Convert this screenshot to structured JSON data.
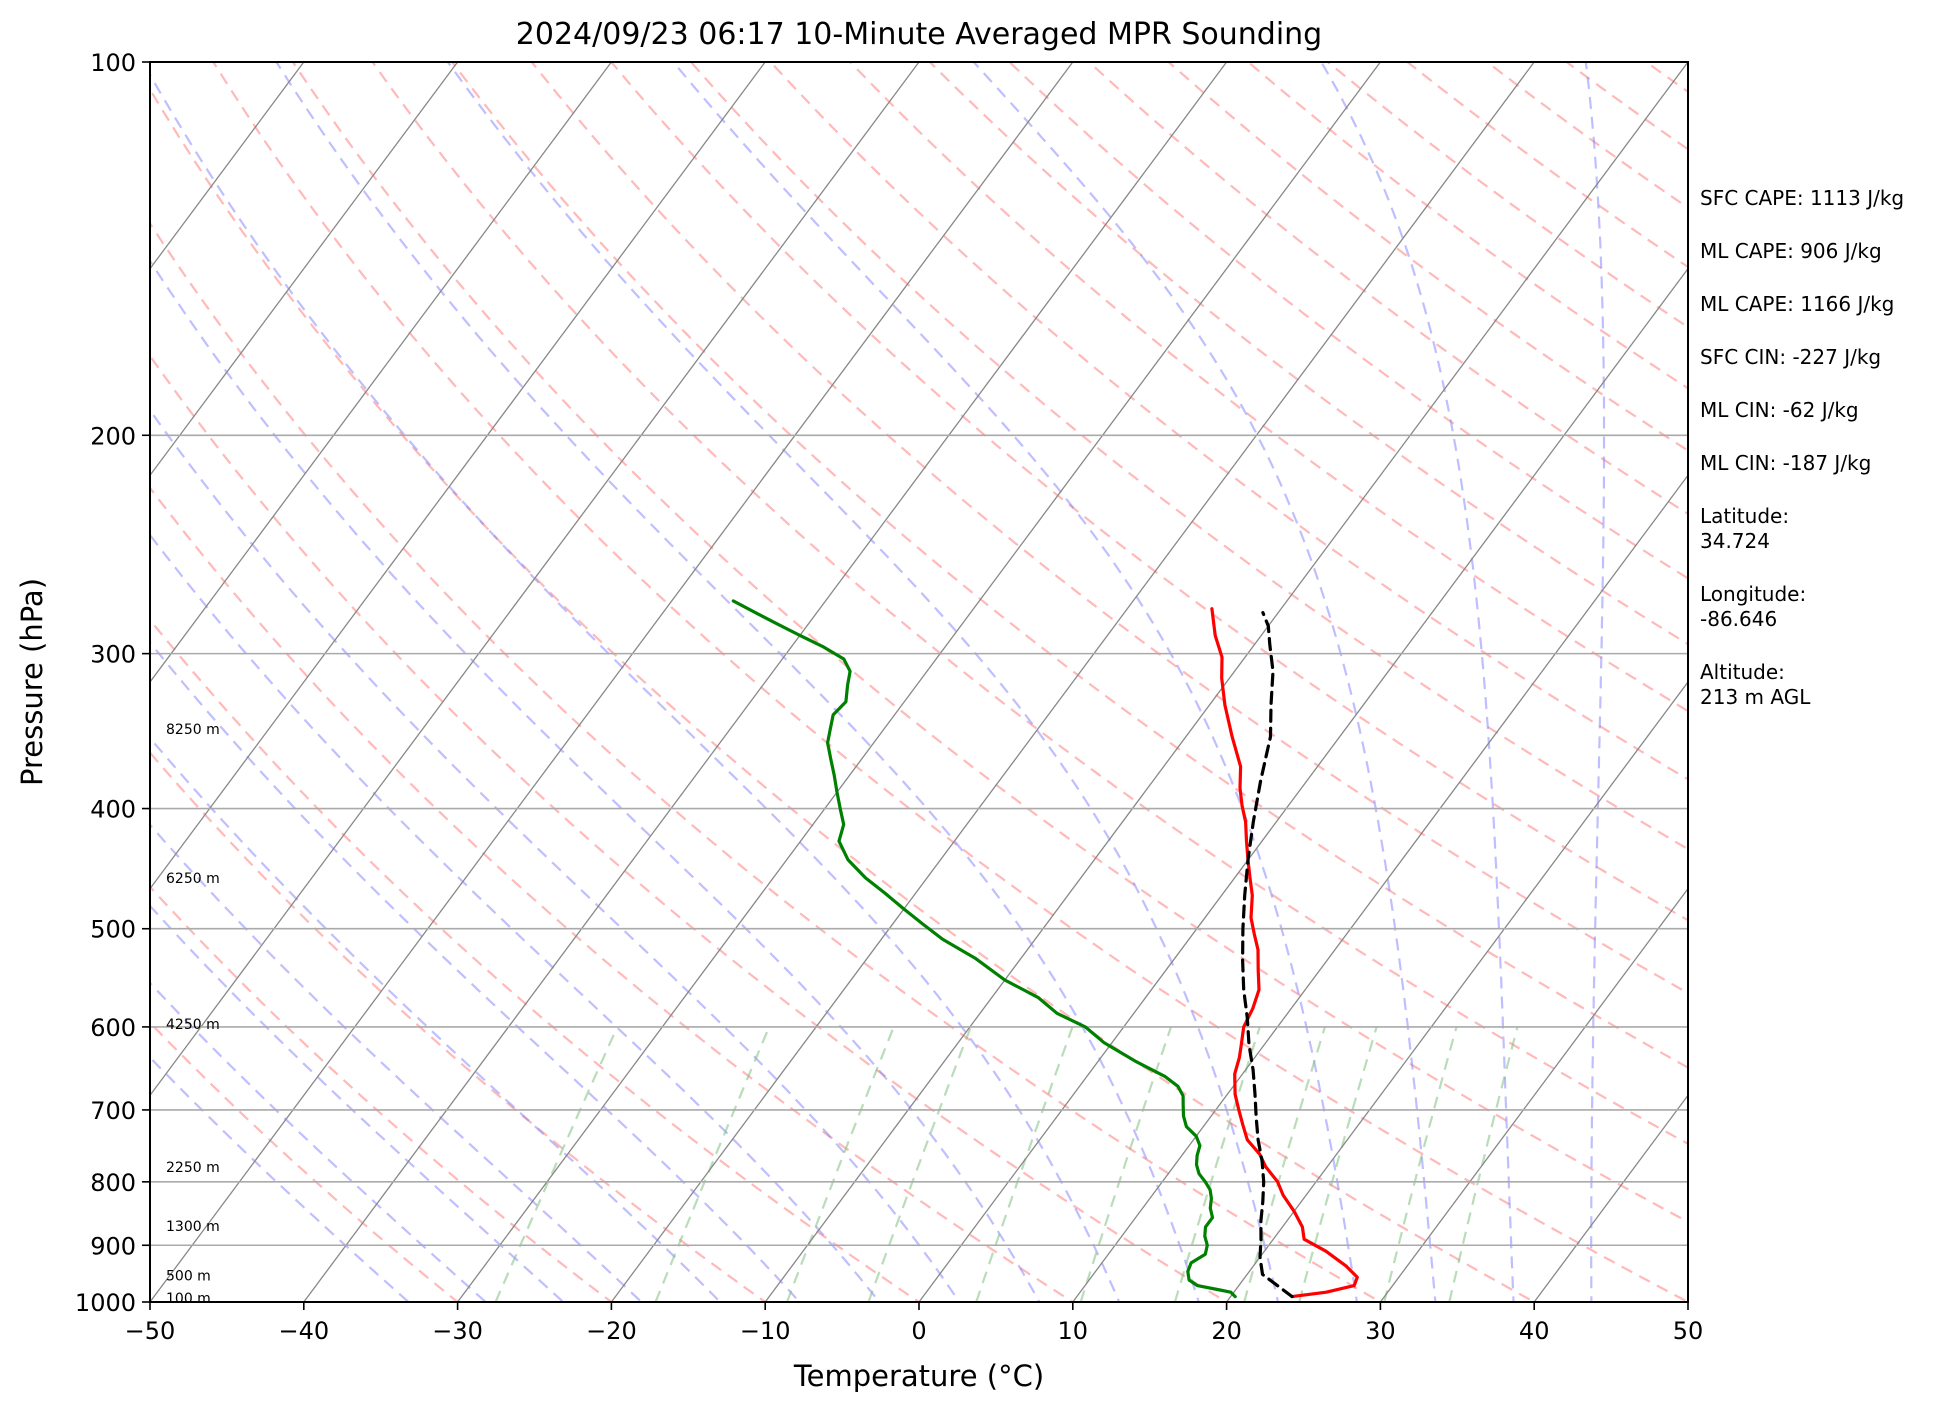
{
  "chart_data": {
    "type": "line",
    "title": "2024/09/23 06:17 10-Minute Averaged MPR Sounding",
    "xlabel": "Temperature (°C)",
    "ylabel": "Pressure (hPa)",
    "xlim": [
      -50,
      50
    ],
    "ylim": [
      1000,
      100
    ],
    "y_scale": "log",
    "grid": true,
    "x_ticks": [
      "−50",
      "−40",
      "−30",
      "−20",
      "−10",
      "0",
      "10",
      "20",
      "30",
      "40",
      "50"
    ],
    "x_tick_values": [
      -50,
      -40,
      -30,
      -20,
      -10,
      0,
      10,
      20,
      30,
      40,
      50
    ],
    "y_ticks": [
      "100",
      "200",
      "300",
      "400",
      "500",
      "600",
      "700",
      "800",
      "900",
      "1000"
    ],
    "y_tick_values": [
      100,
      200,
      300,
      400,
      500,
      600,
      700,
      800,
      900,
      1000
    ],
    "height_labels": [
      {
        "text": "8250 m",
        "p": 345
      },
      {
        "text": "6250 m",
        "p": 455
      },
      {
        "text": "4250 m",
        "p": 597
      },
      {
        "text": "2250 m",
        "p": 778
      },
      {
        "text": "1300 m",
        "p": 868
      },
      {
        "text": "500 m",
        "p": 952
      },
      {
        "text": "100 m",
        "p": 993
      }
    ],
    "series": [
      {
        "color": "#ff0000",
        "points": [
          [
            24,
            990
          ],
          [
            26,
            982
          ],
          [
            27.5,
            970
          ],
          [
            27.3,
            955
          ],
          [
            26,
            935
          ],
          [
            24,
            910
          ],
          [
            22,
            890
          ],
          [
            21.3,
            870
          ],
          [
            20,
            845
          ],
          [
            18.5,
            820
          ],
          [
            17.5,
            800
          ],
          [
            16,
            778
          ],
          [
            15,
            760
          ],
          [
            13.5,
            740
          ],
          [
            12.5,
            720
          ],
          [
            11.5,
            700
          ],
          [
            10.5,
            680
          ],
          [
            9.5,
            655
          ],
          [
            9,
            635
          ],
          [
            8.5,
            620
          ],
          [
            7.8,
            600
          ],
          [
            7.5,
            580
          ],
          [
            7,
            560
          ],
          [
            6,
            540
          ],
          [
            5,
            520
          ],
          [
            4,
            505
          ],
          [
            3,
            490
          ],
          [
            2,
            470
          ],
          [
            1,
            455
          ],
          [
            0,
            440
          ],
          [
            -1,
            425
          ],
          [
            -2,
            410
          ],
          [
            -3,
            398
          ],
          [
            -4,
            385
          ],
          [
            -5,
            370
          ],
          [
            -7,
            350
          ],
          [
            -9,
            330
          ],
          [
            -10.5,
            314
          ],
          [
            -11.5,
            302
          ],
          [
            -13,
            290
          ],
          [
            -14.5,
            276
          ]
        ]
      },
      {
        "color": "#008000",
        "points": [
          [
            20.3,
            990
          ],
          [
            19.8,
            982
          ],
          [
            18.8,
            977
          ],
          [
            17.3,
            970
          ],
          [
            16.5,
            960
          ],
          [
            16,
            945
          ],
          [
            15.8,
            930
          ],
          [
            16.3,
            915
          ],
          [
            16,
            900
          ],
          [
            15.4,
            885
          ],
          [
            15,
            870
          ],
          [
            15,
            855
          ],
          [
            14.4,
            840
          ],
          [
            14,
            825
          ],
          [
            13.5,
            812
          ],
          [
            12.8,
            800
          ],
          [
            12,
            788
          ],
          [
            11.4,
            775
          ],
          [
            11,
            762
          ],
          [
            10.7,
            748
          ],
          [
            10,
            735
          ],
          [
            8.9,
            722
          ],
          [
            8.2,
            708
          ],
          [
            7.7,
            695
          ],
          [
            7.2,
            682
          ],
          [
            6.4,
            670
          ],
          [
            5.1,
            658
          ],
          [
            2.5,
            640
          ],
          [
            -0.5,
            618
          ],
          [
            -2.5,
            600
          ],
          [
            -5,
            585
          ],
          [
            -7,
            568
          ],
          [
            -10,
            550
          ],
          [
            -13,
            528
          ],
          [
            -16,
            510
          ],
          [
            -18,
            496
          ],
          [
            -20,
            482
          ],
          [
            -22,
            468
          ],
          [
            -24,
            455
          ],
          [
            -26,
            440
          ],
          [
            -27.5,
            425
          ],
          [
            -28,
            412
          ],
          [
            -29,
            400
          ],
          [
            -30,
            388
          ],
          [
            -31,
            376
          ],
          [
            -32,
            365
          ],
          [
            -33,
            354
          ],
          [
            -33.5,
            345
          ],
          [
            -34,
            336
          ],
          [
            -33.8,
            328
          ],
          [
            -34.5,
            318
          ],
          [
            -35,
            310
          ],
          [
            -36,
            303
          ],
          [
            -38,
            296
          ],
          [
            -40,
            290
          ],
          [
            -42,
            284
          ],
          [
            -44,
            278
          ],
          [
            -46,
            272
          ]
        ]
      },
      {
        "color": "#000000",
        "dashed": true,
        "points": [
          [
            24,
            990
          ],
          [
            21,
            950
          ],
          [
            20,
            920
          ],
          [
            19.2,
            890
          ],
          [
            18.3,
            860
          ],
          [
            17.5,
            830
          ],
          [
            16.6,
            800
          ],
          [
            15.5,
            770
          ],
          [
            14.2,
            740
          ],
          [
            13,
            710
          ],
          [
            11.8,
            680
          ],
          [
            10.5,
            650
          ],
          [
            9,
            620
          ],
          [
            7.6,
            590
          ],
          [
            6,
            560
          ],
          [
            4.5,
            530
          ],
          [
            3,
            500
          ],
          [
            1.5,
            470
          ],
          [
            0,
            440
          ],
          [
            -1.5,
            410
          ],
          [
            -3,
            380
          ],
          [
            -4.5,
            350
          ],
          [
            -6,
            330
          ],
          [
            -7.5,
            310
          ],
          [
            -9,
            295
          ],
          [
            -10,
            285
          ],
          [
            -11,
            278
          ]
        ]
      }
    ]
  },
  "info_panel": {
    "items": [
      "SFC CAPE: 1113 J/kg",
      "ML CAPE: 906 J/kg",
      "ML CAPE: 1166 J/kg",
      "SFC CIN: -227 J/kg",
      "ML CIN: -62 J/kg",
      "ML CIN: -187 J/kg",
      "Latitude:\n34.724",
      "Longitude:\n-86.646",
      "Altitude:\n213 m AGL"
    ]
  },
  "colors": {
    "temperature": "#ff0000",
    "dewpoint": "#008000",
    "parcel": "#000000",
    "dry_adiabats": "#ff8080",
    "moist_adiabats": "#8080ff",
    "mixing_ratio": "#80c080",
    "isotherms": "#888888",
    "isobars": "#aaaaaa"
  }
}
